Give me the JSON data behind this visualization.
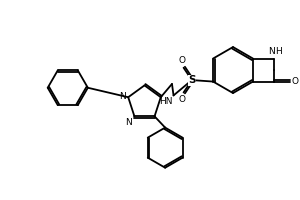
{
  "background_color": "#ffffff",
  "line_color": "#000000",
  "line_width": 1.3,
  "figsize": [
    3.0,
    2.0
  ],
  "dpi": 100,
  "xlim": [
    0,
    10
  ],
  "ylim": [
    0,
    6.67
  ]
}
